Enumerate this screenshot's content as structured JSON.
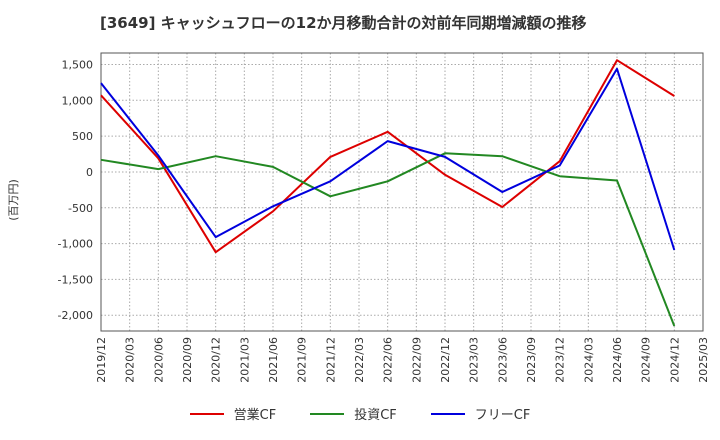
{
  "chart_data": {
    "type": "line",
    "title": "[3649]  キャッシュフローの12か月移動合計の対前年同期増減額の推移",
    "ylabel": "(百万円)",
    "xlabel": "",
    "x_ticks": [
      "2019/12",
      "2020/03",
      "2020/06",
      "2020/09",
      "2020/12",
      "2021/03",
      "2021/06",
      "2021/09",
      "2021/12",
      "2022/03",
      "2022/06",
      "2022/09",
      "2022/12",
      "2023/03",
      "2023/06",
      "2023/09",
      "2023/12",
      "2024/03",
      "2024/06",
      "2024/09",
      "2024/12",
      "2025/03"
    ],
    "y_ticks": [
      1500,
      1000,
      500,
      0,
      -500,
      -1000,
      -1500,
      -2000
    ],
    "y_tick_labels": [
      "1,500",
      "1,000",
      "500",
      "0",
      "-500",
      "-1,000",
      "-1,500",
      "-2,000"
    ],
    "ylim": [
      -2220,
      1660
    ],
    "grid": true,
    "legend_position": "bottom",
    "series": [
      {
        "name": "営業CF",
        "color": "#dd0000",
        "points": [
          {
            "x": "2019/12",
            "y": 1070
          },
          {
            "x": "2020/06",
            "y": 190
          },
          {
            "x": "2020/12",
            "y": -1120
          },
          {
            "x": "2021/06",
            "y": -550
          },
          {
            "x": "2021/12",
            "y": 210
          },
          {
            "x": "2022/06",
            "y": 560
          },
          {
            "x": "2022/12",
            "y": -40
          },
          {
            "x": "2023/06",
            "y": -490
          },
          {
            "x": "2023/12",
            "y": 150
          },
          {
            "x": "2024/06",
            "y": 1560
          },
          {
            "x": "2024/12",
            "y": 1060
          }
        ]
      },
      {
        "name": "投資CF",
        "color": "#228822",
        "points": [
          {
            "x": "2019/12",
            "y": 170
          },
          {
            "x": "2020/06",
            "y": 40
          },
          {
            "x": "2020/12",
            "y": 220
          },
          {
            "x": "2021/06",
            "y": 70
          },
          {
            "x": "2021/12",
            "y": -340
          },
          {
            "x": "2022/06",
            "y": -130
          },
          {
            "x": "2022/12",
            "y": 260
          },
          {
            "x": "2023/06",
            "y": 220
          },
          {
            "x": "2023/12",
            "y": -60
          },
          {
            "x": "2024/06",
            "y": -120
          },
          {
            "x": "2024/12",
            "y": -2150
          }
        ]
      },
      {
        "name": "フリーCF",
        "color": "#0000dd",
        "points": [
          {
            "x": "2019/12",
            "y": 1240
          },
          {
            "x": "2020/06",
            "y": 230
          },
          {
            "x": "2020/12",
            "y": -910
          },
          {
            "x": "2021/06",
            "y": -480
          },
          {
            "x": "2021/12",
            "y": -130
          },
          {
            "x": "2022/06",
            "y": 430
          },
          {
            "x": "2022/12",
            "y": 210
          },
          {
            "x": "2023/06",
            "y": -280
          },
          {
            "x": "2023/12",
            "y": 90
          },
          {
            "x": "2024/06",
            "y": 1440
          },
          {
            "x": "2024/12",
            "y": -1090
          }
        ]
      }
    ]
  }
}
